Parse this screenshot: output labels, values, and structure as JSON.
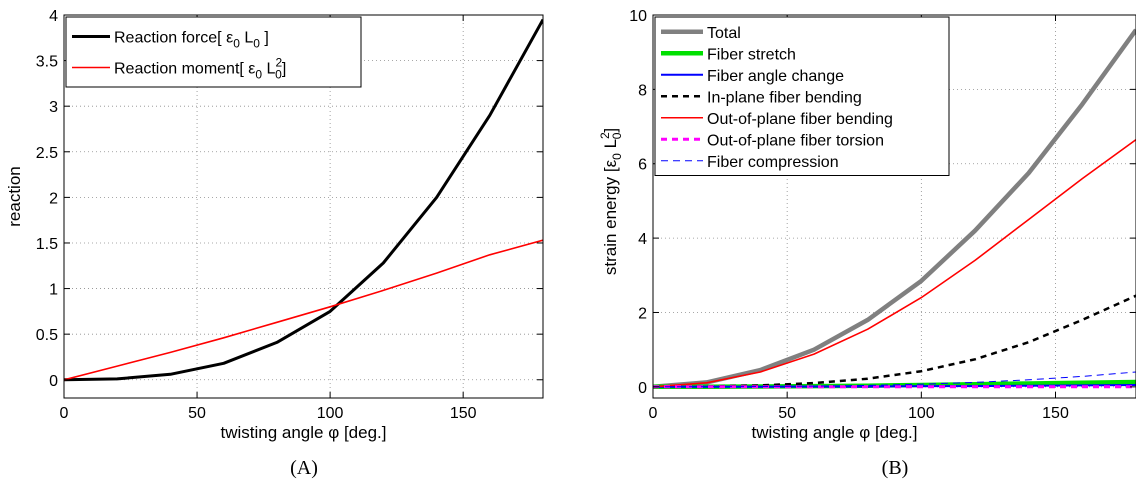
{
  "chart_data": [
    {
      "type": "line",
      "caption": "(A)",
      "xlabel": "twisting angle φ [deg.]",
      "ylabel": "reaction",
      "xlim": [
        0,
        180
      ],
      "ylim": [
        -0.2,
        4
      ],
      "xticks": [
        0,
        50,
        100,
        150
      ],
      "yticks": [
        0,
        0.5,
        1,
        1.5,
        2,
        2.5,
        3,
        3.5,
        4
      ],
      "ytick_labels": [
        "0",
        "0.5",
        "1",
        "1.5",
        "2",
        "2.5",
        "3",
        "3.5",
        "4"
      ],
      "grid": true,
      "legend_position": "top-left",
      "series": [
        {
          "name": "Reaction force",
          "unit": [
            [
              "[ ε",
              ""
            ],
            [
              "0",
              "sub"
            ],
            [
              " L",
              ""
            ],
            [
              "0",
              "sub"
            ],
            [
              " ]",
              ""
            ]
          ],
          "color": "#000000",
          "style": "solid",
          "width": 3,
          "x": [
            0,
            20,
            40,
            60,
            80,
            100,
            120,
            140,
            160,
            180
          ],
          "y": [
            0,
            0.01,
            0.06,
            0.18,
            0.41,
            0.75,
            1.28,
            2.0,
            2.9,
            3.95
          ]
        },
        {
          "name": "Reaction moment",
          "unit": [
            [
              "[ ε",
              ""
            ],
            [
              "0",
              "sub"
            ],
            [
              " L",
              ""
            ],
            [
              "2",
              "sup"
            ],
            [
              "0",
              "sub2"
            ],
            [
              "]",
              ""
            ]
          ],
          "color": "#ff0000",
          "style": "solid",
          "width": 1.6,
          "x": [
            0,
            20,
            40,
            60,
            80,
            100,
            120,
            140,
            160,
            180
          ],
          "y": [
            0,
            0.15,
            0.3,
            0.46,
            0.63,
            0.8,
            0.98,
            1.17,
            1.37,
            1.53
          ]
        }
      ]
    },
    {
      "type": "line",
      "caption": "(B)",
      "xlabel": "twisting angle φ [deg.]",
      "ylabel": "strain energy [ε",
      "ylabel_parts": [
        [
          "strain energy [ε",
          ""
        ],
        [
          "0",
          "sub"
        ],
        [
          " L",
          ""
        ],
        [
          "2",
          "sup"
        ],
        [
          "0",
          "sub2"
        ],
        [
          "]",
          ""
        ]
      ],
      "xlim": [
        0,
        180
      ],
      "ylim": [
        -0.3,
        10
      ],
      "xticks": [
        0,
        50,
        100,
        150
      ],
      "yticks": [
        0,
        2,
        4,
        6,
        8,
        10
      ],
      "ytick_labels": [
        "0",
        "2",
        "4",
        "6",
        "8",
        "10"
      ],
      "grid": true,
      "legend_position": "top-left",
      "series": [
        {
          "name": "Total",
          "color": "#808080",
          "style": "solid",
          "width": 4.5,
          "x": [
            0,
            20,
            40,
            60,
            80,
            100,
            120,
            140,
            160,
            180
          ],
          "y": [
            0,
            0.12,
            0.45,
            1.0,
            1.8,
            2.85,
            4.2,
            5.75,
            7.6,
            9.6
          ]
        },
        {
          "name": "Fiber stretch",
          "color": "#00e000",
          "style": "solid",
          "width": 4.5,
          "x": [
            0,
            20,
            40,
            60,
            80,
            100,
            120,
            140,
            160,
            180
          ],
          "y": [
            0,
            0,
            0.01,
            0.02,
            0.03,
            0.05,
            0.07,
            0.09,
            0.11,
            0.13
          ]
        },
        {
          "name": "Fiber angle change",
          "color": "#0000ff",
          "style": "solid",
          "width": 2,
          "x": [
            0,
            20,
            40,
            60,
            80,
            100,
            120,
            140,
            160,
            180
          ],
          "y": [
            0,
            0,
            0,
            0.01,
            0.01,
            0.02,
            0.02,
            0.03,
            0.04,
            0.05
          ]
        },
        {
          "name": "In-plane fiber bending",
          "color": "#000000",
          "style": "dash",
          "width": 2.5,
          "x": [
            0,
            20,
            40,
            60,
            80,
            100,
            120,
            140,
            160,
            180
          ],
          "y": [
            0,
            0.01,
            0.04,
            0.1,
            0.22,
            0.42,
            0.74,
            1.2,
            1.8,
            2.45
          ]
        },
        {
          "name": "Out-of-plane fiber bending",
          "color": "#ff0000",
          "style": "solid",
          "width": 1.6,
          "x": [
            0,
            20,
            40,
            60,
            80,
            100,
            120,
            140,
            160,
            180
          ],
          "y": [
            0,
            0.11,
            0.4,
            0.88,
            1.55,
            2.4,
            3.4,
            4.5,
            5.6,
            6.65
          ]
        },
        {
          "name": "Out-of-plane fiber torsion",
          "color": "#ff00ff",
          "style": "dash",
          "width": 3,
          "x": [
            0,
            20,
            40,
            60,
            80,
            100,
            120,
            140,
            160,
            180
          ],
          "y": [
            0,
            0,
            0,
            0,
            0,
            0,
            0,
            0,
            0,
            0
          ]
        },
        {
          "name": "Fiber compression",
          "color": "#0000ff",
          "style": "dashthin",
          "width": 1,
          "x": [
            0,
            20,
            40,
            60,
            80,
            100,
            120,
            140,
            160,
            180
          ],
          "y": [
            0,
            0,
            0.01,
            0.02,
            0.04,
            0.07,
            0.12,
            0.19,
            0.28,
            0.4
          ]
        }
      ]
    }
  ]
}
